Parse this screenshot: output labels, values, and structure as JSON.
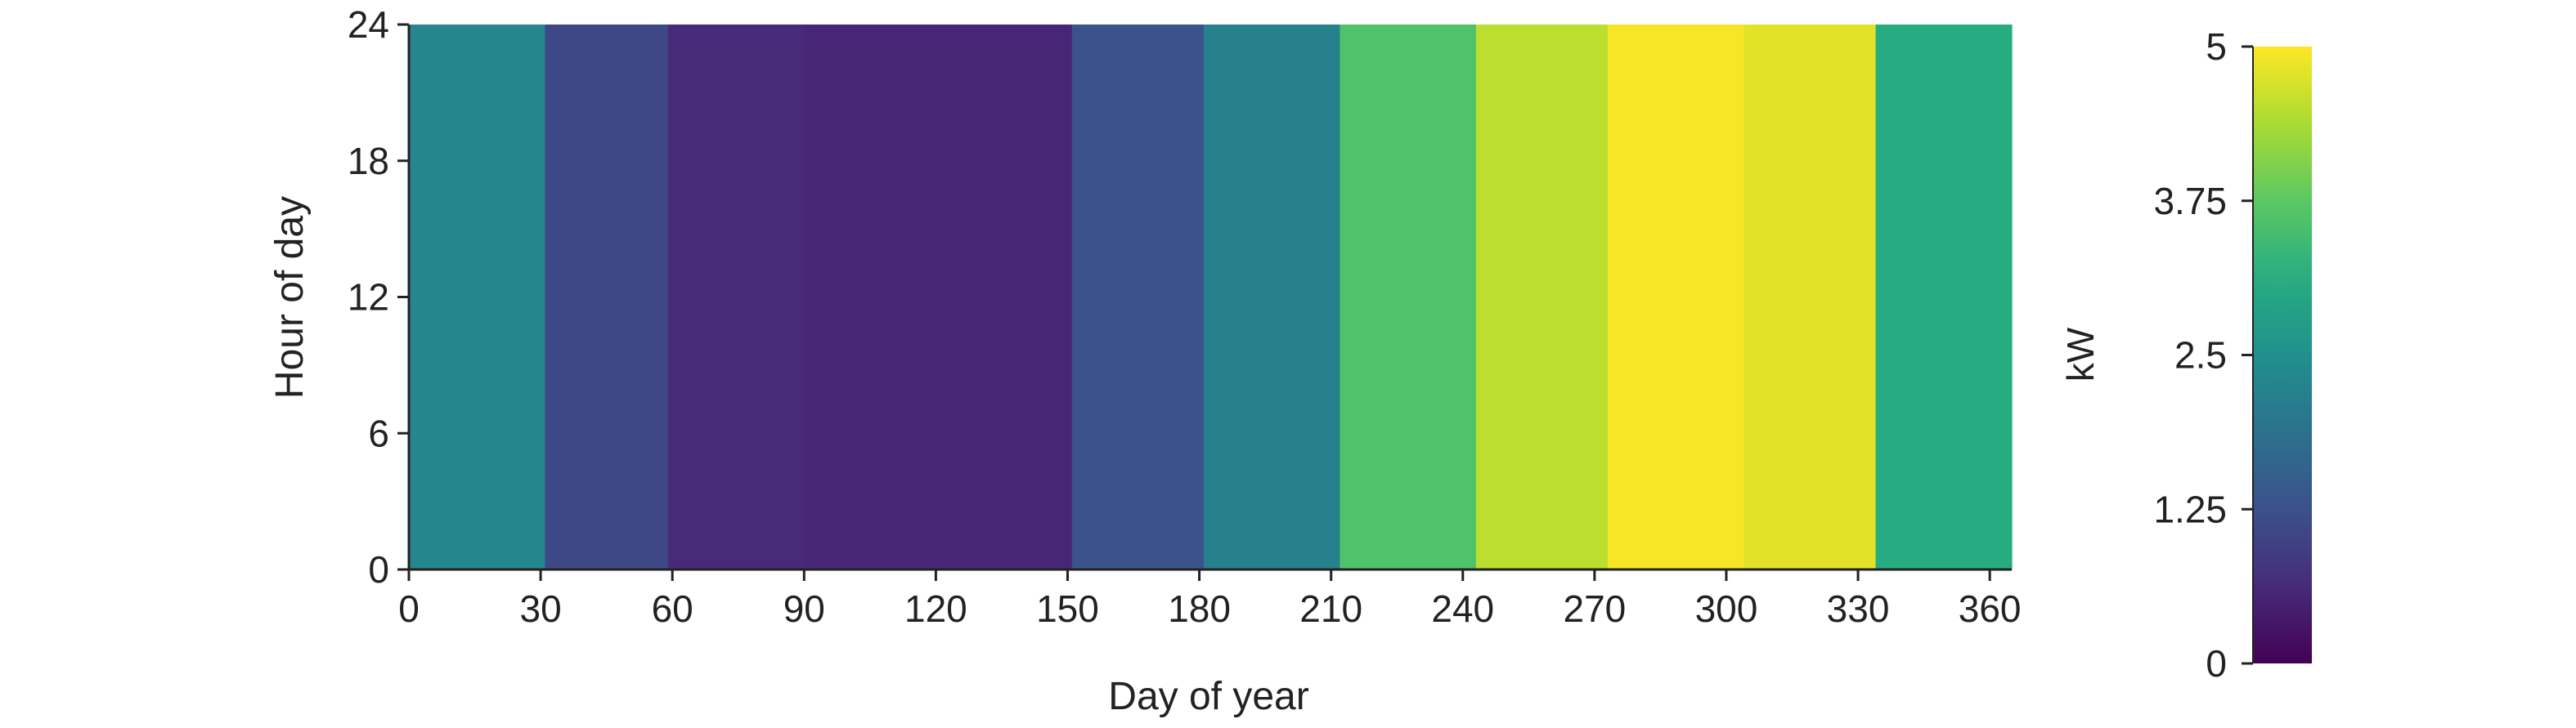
{
  "chart_data": {
    "type": "heatmap",
    "title": "",
    "xlabel": "Day of year",
    "ylabel": "Hour of day",
    "xlim": [
      0,
      365
    ],
    "ylim": [
      0,
      24
    ],
    "xticks": [
      0,
      30,
      60,
      90,
      120,
      150,
      180,
      210,
      240,
      270,
      300,
      330,
      360
    ],
    "xtick_labels": [
      "0",
      "30",
      "60",
      "90",
      "120",
      "150",
      "180",
      "210",
      "240",
      "270",
      "300",
      "330",
      "360"
    ],
    "yticks": [
      0,
      6,
      12,
      18,
      24
    ],
    "ytick_labels": [
      "0",
      "6",
      "12",
      "18",
      "24"
    ],
    "colorbar": {
      "label": "kW",
      "range": [
        0,
        5
      ],
      "ticks": [
        0,
        1.25,
        2.5,
        3.75,
        5
      ],
      "tick_labels": [
        "0",
        "1.25",
        "2.5",
        "3.75",
        "5"
      ],
      "colormap": "viridis"
    },
    "cells": [
      {
        "day_start": 0,
        "day_end": 31,
        "hour_start": 0,
        "hour_end": 24,
        "value": 2.3
      },
      {
        "day_start": 31,
        "day_end": 59,
        "hour_start": 0,
        "hour_end": 24,
        "value": 1.1
      },
      {
        "day_start": 59,
        "day_end": 90,
        "hour_start": 0,
        "hour_end": 24,
        "value": 0.6
      },
      {
        "day_start": 90,
        "day_end": 120,
        "hour_start": 0,
        "hour_end": 24,
        "value": 0.55
      },
      {
        "day_start": 120,
        "day_end": 151,
        "hour_start": 0,
        "hour_end": 24,
        "value": 0.55
      },
      {
        "day_start": 151,
        "day_end": 181,
        "hour_start": 0,
        "hour_end": 24,
        "value": 1.3
      },
      {
        "day_start": 181,
        "day_end": 212,
        "hour_start": 0,
        "hour_end": 24,
        "value": 2.2
      },
      {
        "day_start": 212,
        "day_end": 243,
        "hour_start": 0,
        "hour_end": 24,
        "value": 3.6
      },
      {
        "day_start": 243,
        "day_end": 273,
        "hour_start": 0,
        "hour_end": 24,
        "value": 4.5
      },
      {
        "day_start": 273,
        "day_end": 304,
        "hour_start": 0,
        "hour_end": 24,
        "value": 4.95
      },
      {
        "day_start": 304,
        "day_end": 334,
        "hour_start": 0,
        "hour_end": 24,
        "value": 4.8
      },
      {
        "day_start": 334,
        "day_end": 365,
        "hour_start": 0,
        "hour_end": 24,
        "value": 3.1
      }
    ]
  }
}
